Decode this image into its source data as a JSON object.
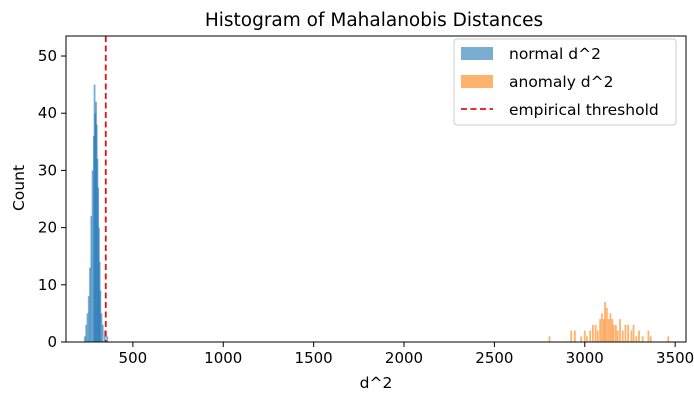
{
  "chart_data": {
    "type": "histogram",
    "title": "Histogram of Mahalanobis Distances",
    "xlabel": "d^2",
    "ylabel": "Count",
    "xlim": [
      130,
      3560
    ],
    "ylim": [
      0,
      53.5
    ],
    "x_ticks": [
      500,
      1000,
      1500,
      2000,
      2500,
      3000,
      3500
    ],
    "y_ticks": [
      0,
      10,
      20,
      30,
      40,
      50
    ],
    "bin_width": 10,
    "series": [
      {
        "name": "normal d^2",
        "color": "#1f77b4",
        "opacity": 0.6,
        "bins": [
          [
            235,
            1
          ],
          [
            242,
            3
          ],
          [
            249,
            5
          ],
          [
            256,
            8
          ],
          [
            263,
            13
          ],
          [
            270,
            22
          ],
          [
            277,
            30
          ],
          [
            284,
            36
          ],
          [
            288,
            45
          ],
          [
            292,
            40
          ],
          [
            296,
            42
          ],
          [
            300,
            38
          ],
          [
            304,
            32
          ],
          [
            308,
            27
          ],
          [
            312,
            20
          ],
          [
            316,
            14
          ],
          [
            320,
            9
          ],
          [
            326,
            5
          ],
          [
            333,
            3
          ],
          [
            345,
            2
          ],
          [
            358,
            1
          ]
        ]
      },
      {
        "name": "anomaly d^2",
        "color": "#ff7f0e",
        "opacity": 0.6,
        "bins": [
          [
            2805,
            1
          ],
          [
            2925,
            2
          ],
          [
            2945,
            2
          ],
          [
            2980,
            1
          ],
          [
            3000,
            2
          ],
          [
            3012,
            1
          ],
          [
            3030,
            2
          ],
          [
            3045,
            3
          ],
          [
            3060,
            3
          ],
          [
            3072,
            2
          ],
          [
            3085,
            4
          ],
          [
            3095,
            5
          ],
          [
            3105,
            4
          ],
          [
            3112,
            7
          ],
          [
            3122,
            6
          ],
          [
            3132,
            4
          ],
          [
            3142,
            5
          ],
          [
            3152,
            4
          ],
          [
            3160,
            3
          ],
          [
            3172,
            3
          ],
          [
            3182,
            2
          ],
          [
            3195,
            4
          ],
          [
            3210,
            2
          ],
          [
            3225,
            3
          ],
          [
            3240,
            3
          ],
          [
            3258,
            2
          ],
          [
            3270,
            3
          ],
          [
            3285,
            1
          ],
          [
            3300,
            2
          ],
          [
            3320,
            1
          ],
          [
            3352,
            2
          ],
          [
            3365,
            1
          ],
          [
            3462,
            1
          ]
        ]
      }
    ],
    "threshold": {
      "name": "empirical threshold",
      "x": 350,
      "color": "#e8110e",
      "style": "dashed"
    },
    "legend_position": "top-right",
    "grid": false
  }
}
